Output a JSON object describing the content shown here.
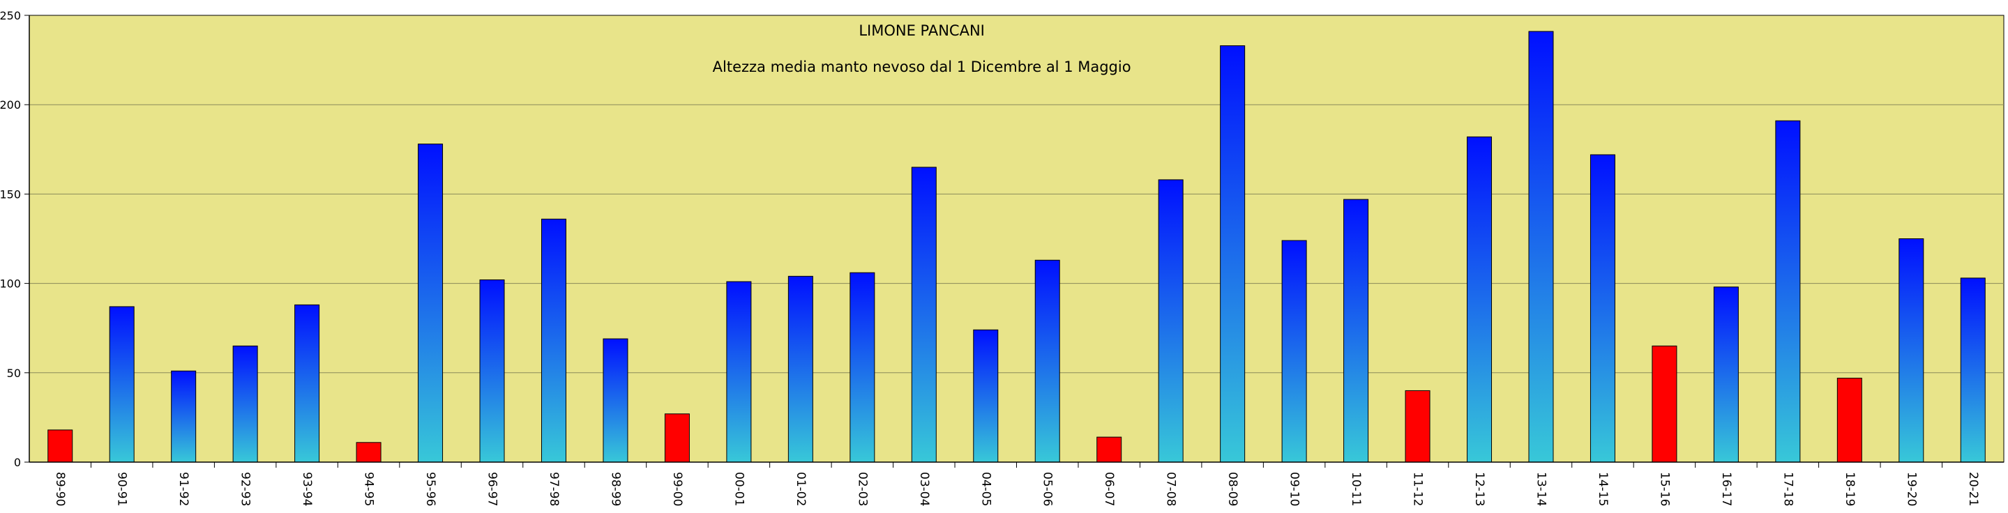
{
  "chart_data": {
    "type": "bar",
    "title": "LIMONE PANCANI",
    "subtitle": "Altezza media manto nevoso dal 1 Dicembre al 1 Maggio",
    "xlabel": "",
    "ylabel": "",
    "ylim": [
      0,
      250
    ],
    "yticks": [
      0,
      50,
      100,
      150,
      200,
      250
    ],
    "grid": true,
    "categories": [
      "89-90",
      "90-91",
      "91-92",
      "92-93",
      "93-94",
      "94-95",
      "95-96",
      "96-97",
      "97-98",
      "98-99",
      "99-00",
      "00-01",
      "01-02",
      "02-03",
      "03-04",
      "04-05",
      "05-06",
      "06-07",
      "07-08",
      "08-09",
      "09-10",
      "10-11",
      "11-12",
      "12-13",
      "13-14",
      "14-15",
      "15-16",
      "16-17",
      "17-18",
      "18-19",
      "19-20",
      "20-21"
    ],
    "values": [
      18,
      87,
      51,
      65,
      88,
      11,
      178,
      102,
      136,
      69,
      27,
      101,
      104,
      106,
      165,
      74,
      113,
      14,
      158,
      233,
      124,
      147,
      40,
      182,
      241,
      172,
      65,
      98,
      191,
      47,
      125,
      103
    ],
    "highlighted": [
      true,
      false,
      false,
      false,
      false,
      true,
      false,
      false,
      false,
      false,
      true,
      false,
      false,
      false,
      false,
      false,
      false,
      true,
      false,
      false,
      false,
      false,
      true,
      false,
      false,
      false,
      true,
      false,
      false,
      true,
      false,
      false
    ]
  },
  "colors": {
    "plot_background": "#e8e48a",
    "grid": "#8a8a5a",
    "bar_top": "#0010ff",
    "bar_bottom": "#38c8d8",
    "bar_low": "#ff0000",
    "bar_outline": "#000000"
  }
}
